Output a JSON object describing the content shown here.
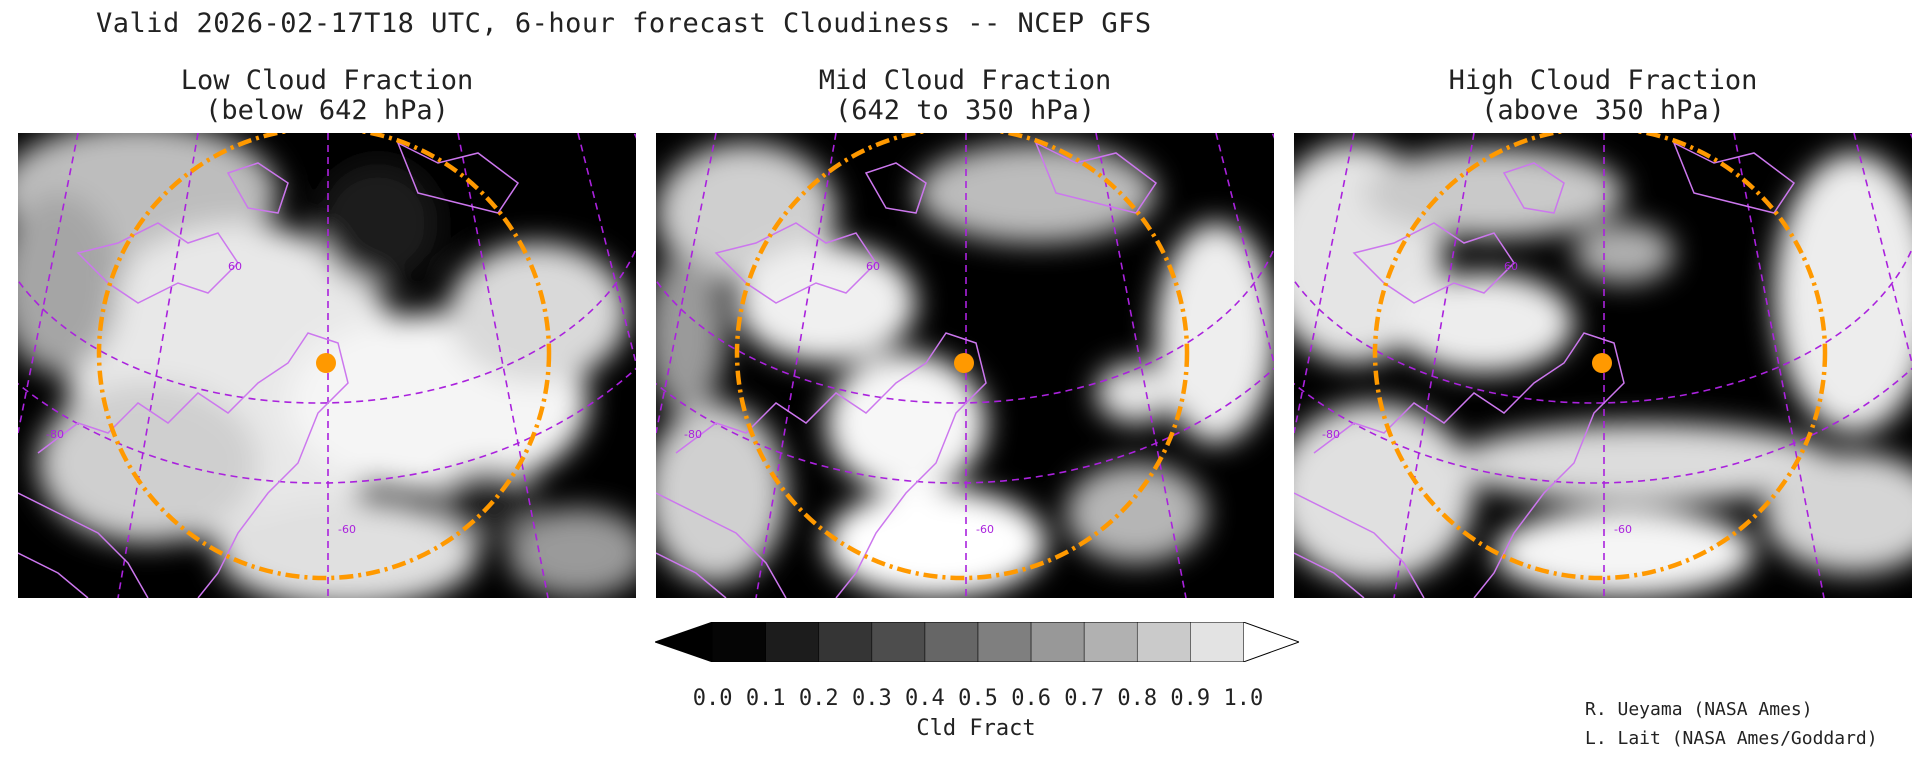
{
  "title": "Valid 2026-02-17T18 UTC, 6-hour forecast Cloudiness -- NCEP GFS",
  "panels": [
    {
      "line1": "Low Cloud Fraction",
      "line2": "(below 642 hPa)"
    },
    {
      "line1": "Mid Cloud Fraction",
      "line2": "(642 to 350 hPa)"
    },
    {
      "line1": "High Cloud Fraction",
      "line2": "(above 350 hPa)"
    }
  ],
  "grid_labels": {
    "lat": "60",
    "lon": "-60",
    "lon_west": "-80"
  },
  "colorbar": {
    "label": "Cld Fract",
    "ticks": [
      "0.0",
      "0.1",
      "0.2",
      "0.3",
      "0.4",
      "0.5",
      "0.6",
      "0.7",
      "0.8",
      "0.9",
      "1.0"
    ],
    "colors": [
      "#050505",
      "#1c1c1c",
      "#353535",
      "#4d4d4d",
      "#666666",
      "#7f7f7f",
      "#989898",
      "#b1b1b1",
      "#cacaca",
      "#e3e3e3"
    ],
    "under_color": "#000000",
    "over_color": "#ffffff"
  },
  "credits": {
    "line1": "R. Ueyama (NASA Ames)",
    "line2": "L. Lait (NASA Ames/Goddard)"
  },
  "colors": {
    "coast": "#cc77ee",
    "grid": "#aa22dd",
    "range_ring": "#ff9900",
    "marker": "#ff9900"
  }
}
